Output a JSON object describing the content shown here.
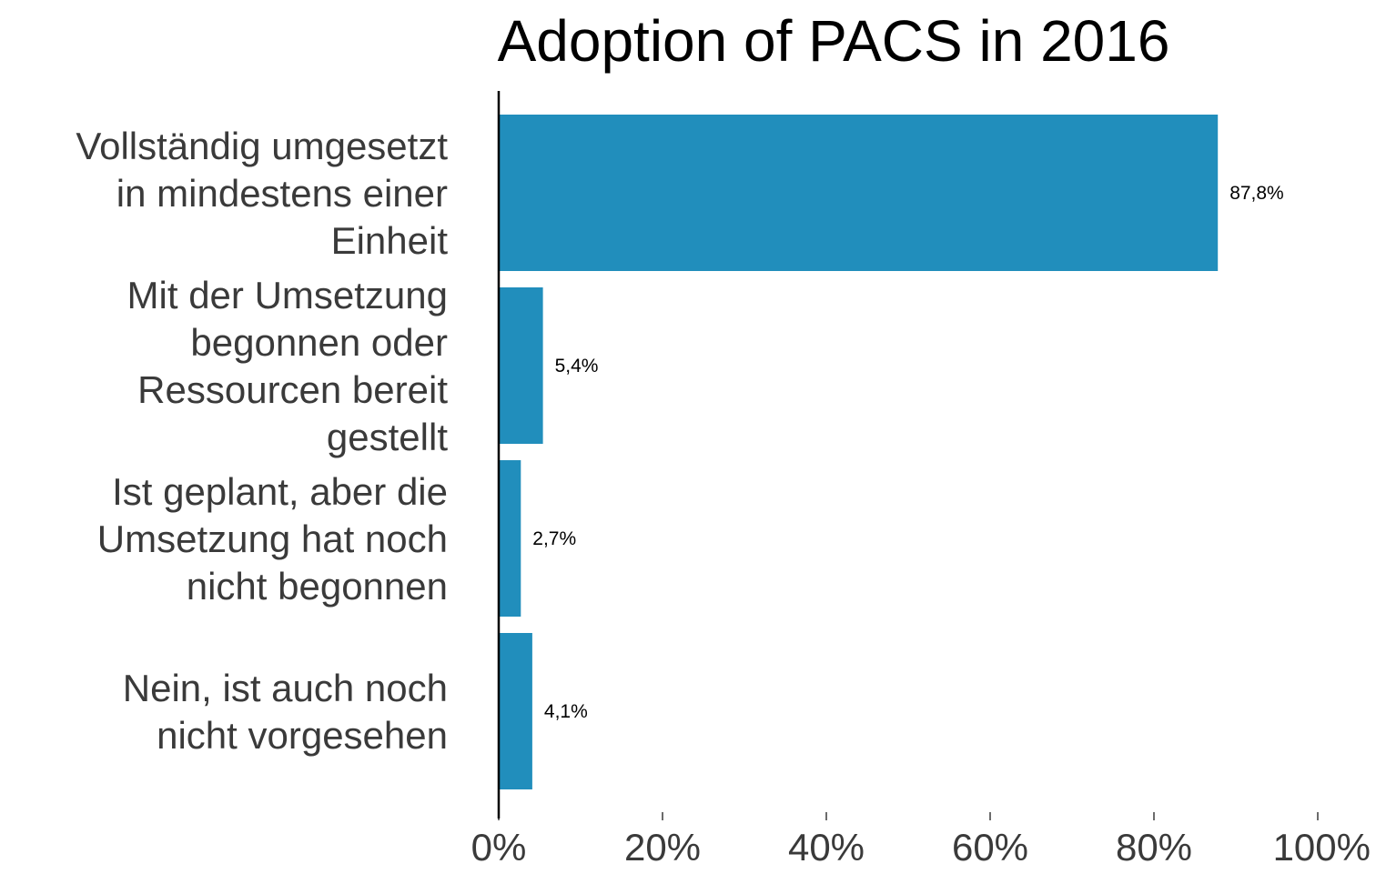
{
  "chart_data": {
    "type": "bar",
    "orientation": "horizontal",
    "title": "Adoption of PACS in 2016",
    "categories": [
      [
        "Vollständig umgesetzt",
        "in mindestens einer",
        "Einheit"
      ],
      [
        "Mit der Umsetzung",
        "begonnen oder",
        "Ressourcen bereit",
        "gestellt"
      ],
      [
        "Ist geplant, aber die",
        "Umsetzung hat noch",
        "nicht begonnen"
      ],
      [
        "Nein, ist auch noch",
        "nicht vorgesehen"
      ]
    ],
    "values": [
      87.8,
      5.4,
      2.7,
      4.1
    ],
    "data_labels": [
      "87,8%",
      "5,4%",
      "2,7%",
      "4,1%"
    ],
    "xlim": [
      0,
      100
    ],
    "x_ticks": [
      0,
      20,
      40,
      60,
      80,
      100
    ],
    "x_tick_labels": [
      "0%",
      "20%",
      "40%",
      "60%",
      "80%",
      "100%"
    ],
    "grid": false,
    "bar_color": "#218ebc"
  }
}
